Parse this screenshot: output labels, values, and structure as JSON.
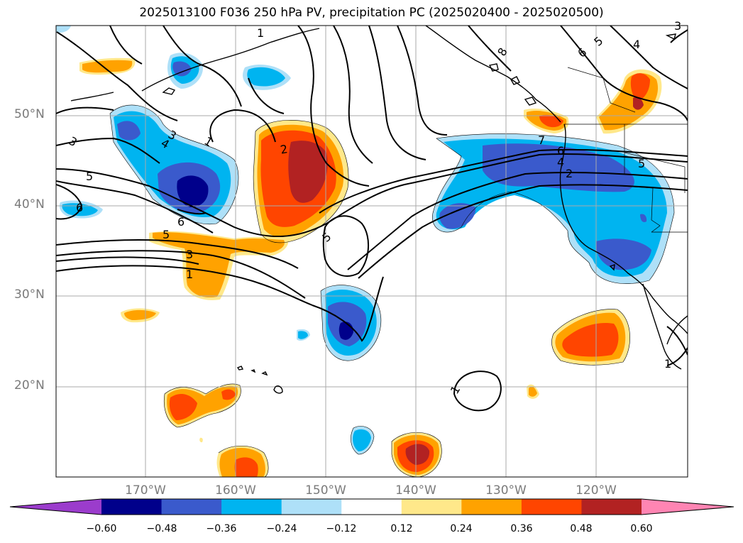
{
  "title": "2025013100 F036 250 hPa PV, precipitation PC (2025020400 - 2025020500)",
  "axes": {
    "lat_labels": [
      "50°N",
      "40°N",
      "30°N",
      "20°N"
    ],
    "lon_labels": [
      "170°W",
      "160°W",
      "150°W",
      "140°W",
      "130°W",
      "120°W"
    ]
  },
  "contour_labels": [
    "1",
    "8",
    "6",
    "5",
    "4",
    "3",
    "3",
    "4",
    "1",
    "2",
    "7",
    "6",
    "4",
    "2",
    "5",
    "5",
    "6",
    "6",
    "5",
    "3",
    "1",
    "5",
    "1",
    "1",
    "3"
  ],
  "colorbar": {
    "tick_labels": [
      "−0.60",
      "−0.48",
      "−0.36",
      "−0.24",
      "−0.12",
      "0.12",
      "0.24",
      "0.36",
      "0.48",
      "0.60"
    ],
    "colors": [
      "#9b3ccc",
      "#00008b",
      "#3a5acc",
      "#00b4f0",
      "#aee0f8",
      "#ffffff",
      "#ffe88a",
      "#ffa200",
      "#ff4500",
      "#b22222",
      "#ff85b3"
    ]
  }
}
